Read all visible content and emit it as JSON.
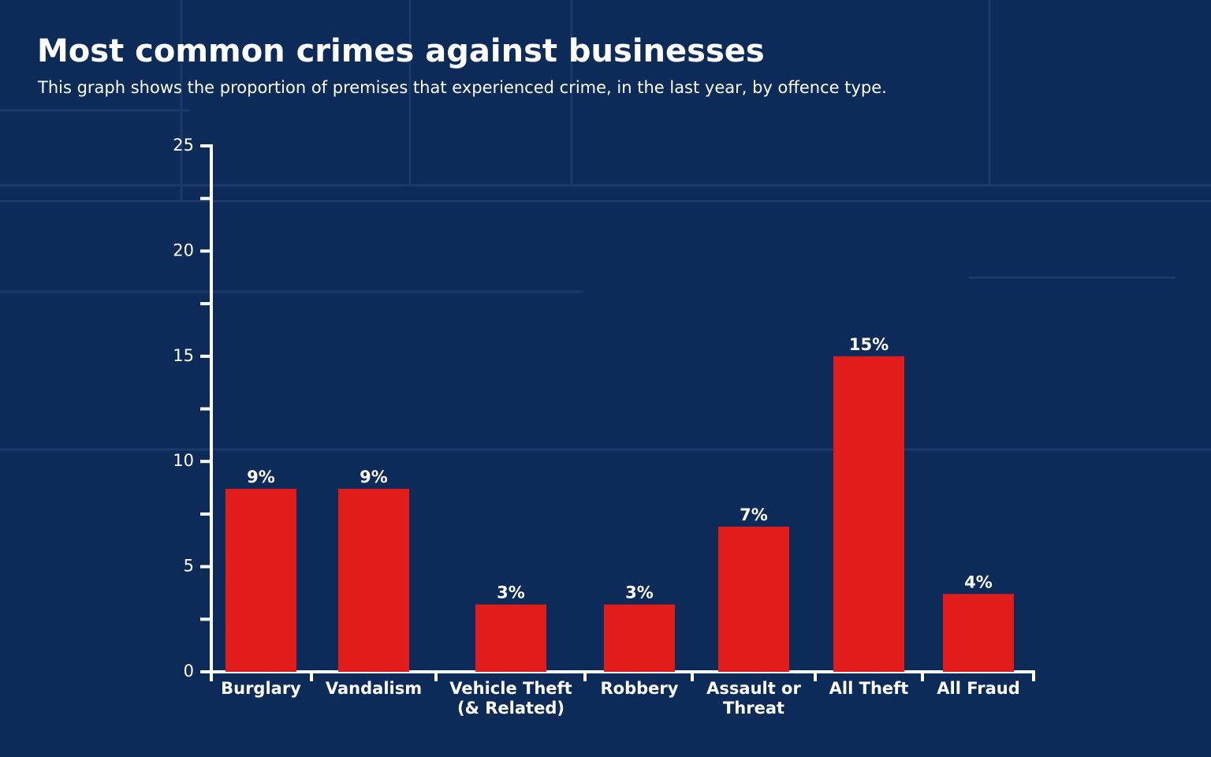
{
  "chart_data": {
    "type": "bar",
    "title": "Most common crimes against businesses",
    "subtitle": "This graph shows the proportion of premises that experienced crime, in the last year, by offence type.",
    "categories": [
      "Burglary",
      "Vandalism",
      "Vehicle Theft\n(& Related)",
      "Robbery",
      "Assault or\nThreat",
      "All Theft",
      "All Fraud"
    ],
    "values": [
      8.7,
      8.7,
      3.2,
      3.2,
      6.9,
      15.0,
      3.7
    ],
    "value_labels": [
      "9%",
      "9%",
      "3%",
      "3%",
      "7%",
      "15%",
      "4%"
    ],
    "color": "#e21b1b",
    "ylim": [
      0,
      25
    ],
    "yticks": [
      0,
      5,
      10,
      15,
      20,
      25
    ],
    "minor_yticks": [
      2.5,
      7.5,
      12.5,
      17.5,
      22.5
    ]
  }
}
